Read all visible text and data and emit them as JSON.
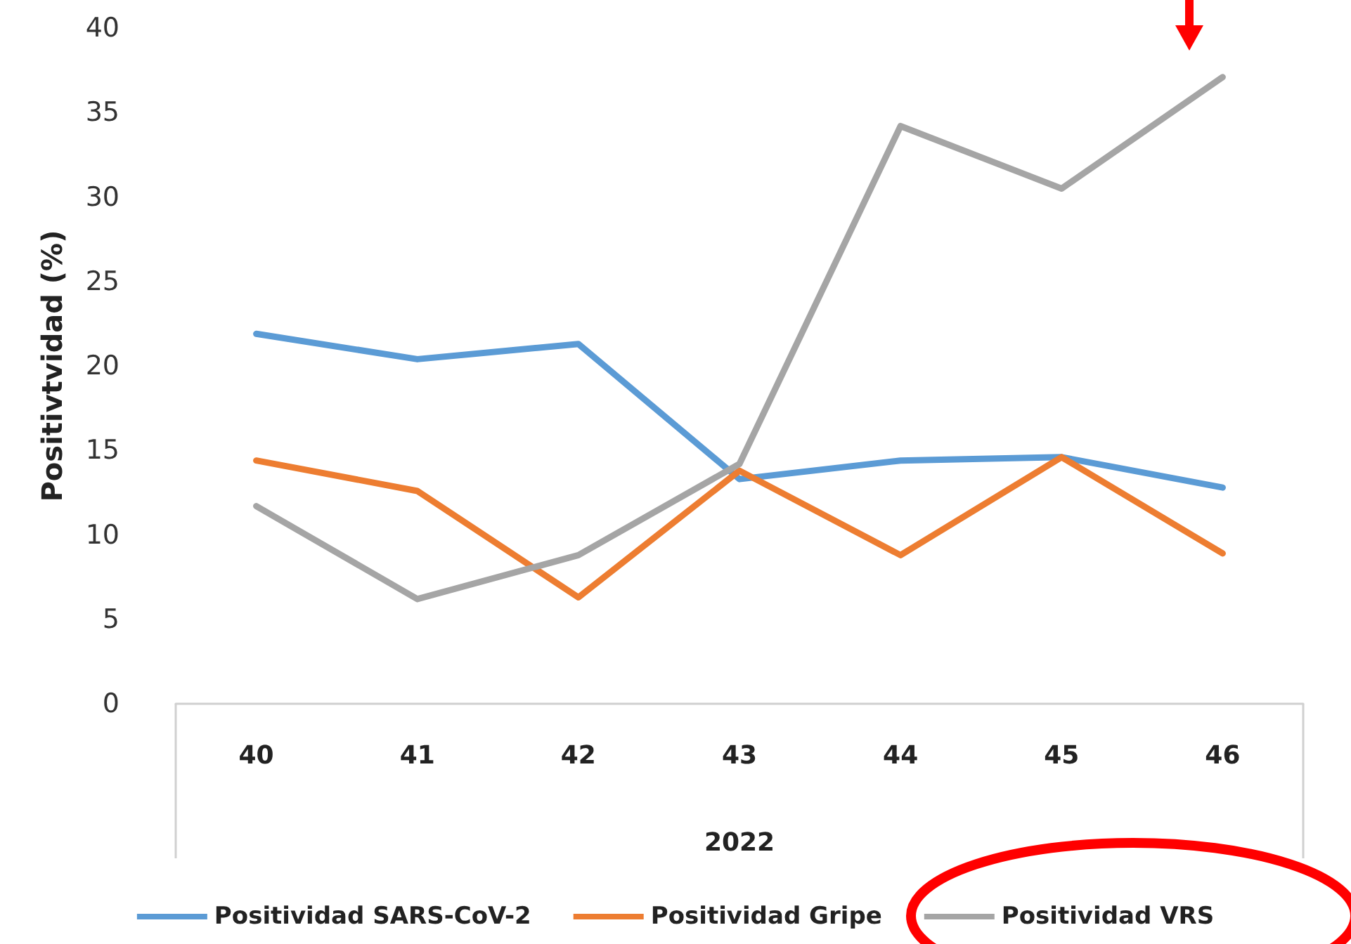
{
  "chart_data": {
    "type": "line",
    "ylabel": "Positivtvidad (%)",
    "xlabel": "2022",
    "categories": [
      "40",
      "41",
      "42",
      "43",
      "44",
      "45",
      "46"
    ],
    "series": [
      {
        "name": "Positividad SARS-CoV-2",
        "color": "#5b9bd5",
        "values": [
          21.9,
          20.4,
          21.3,
          13.3,
          14.4,
          14.6,
          12.8
        ]
      },
      {
        "name": "Positividad Gripe",
        "color": "#ed7d31",
        "values": [
          14.4,
          12.6,
          6.3,
          13.8,
          8.8,
          14.6,
          8.9
        ]
      },
      {
        "name": "Positividad VRS",
        "color": "#a5a5a5",
        "values": [
          11.7,
          6.2,
          8.8,
          14.2,
          34.2,
          30.5,
          37.1
        ]
      }
    ],
    "ylim": [
      0,
      40
    ],
    "yticks": [
      0,
      5,
      10,
      15,
      20,
      25,
      30,
      35,
      40
    ],
    "grid": false,
    "legend": "bottom",
    "marker": "none",
    "line_style": "solid"
  }
}
